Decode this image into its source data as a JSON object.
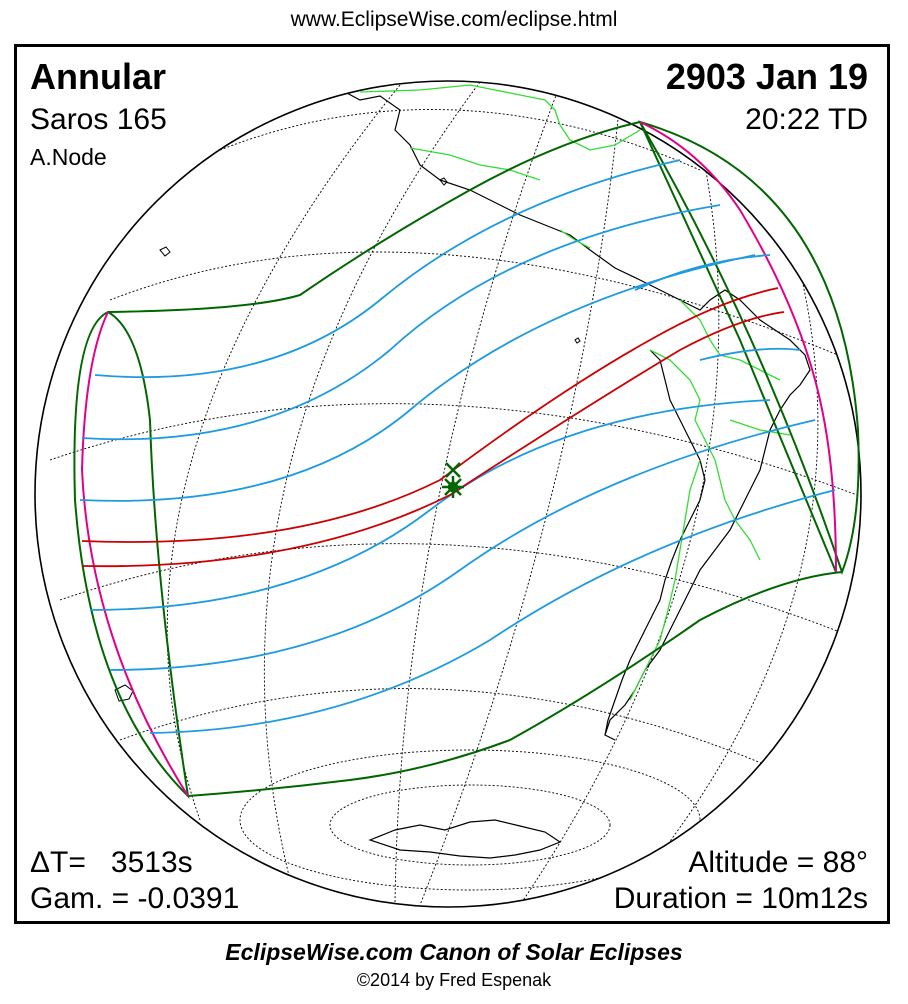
{
  "header": {
    "url": "www.EclipseWise.com/eclipse.html"
  },
  "eclipse": {
    "type": "Annular",
    "date": "2903 Jan 19",
    "saros": "Saros 165",
    "time": "20:22 TD",
    "node": "A.Node",
    "delta_t": "ΔT=   3513s",
    "gamma": "Gam. = -0.0391",
    "altitude": "Altitude = 88°",
    "duration": "Duration = 10m12s"
  },
  "footer": {
    "canon": "EclipseWise.com Canon of Solar Eclipses",
    "copyright": "©2014 by Fred Espenak"
  },
  "colors": {
    "central_path": "#cc0000",
    "penumbral_limits": "#1e9be0",
    "outer_limits": "#006600",
    "rise_set_curves": "#e0008a",
    "borders": "#33dd33",
    "coastline": "#000000"
  },
  "icons": {
    "greatest_eclipse": "asterisk-marker-icon",
    "greatest_duration": "x-marker-icon"
  }
}
